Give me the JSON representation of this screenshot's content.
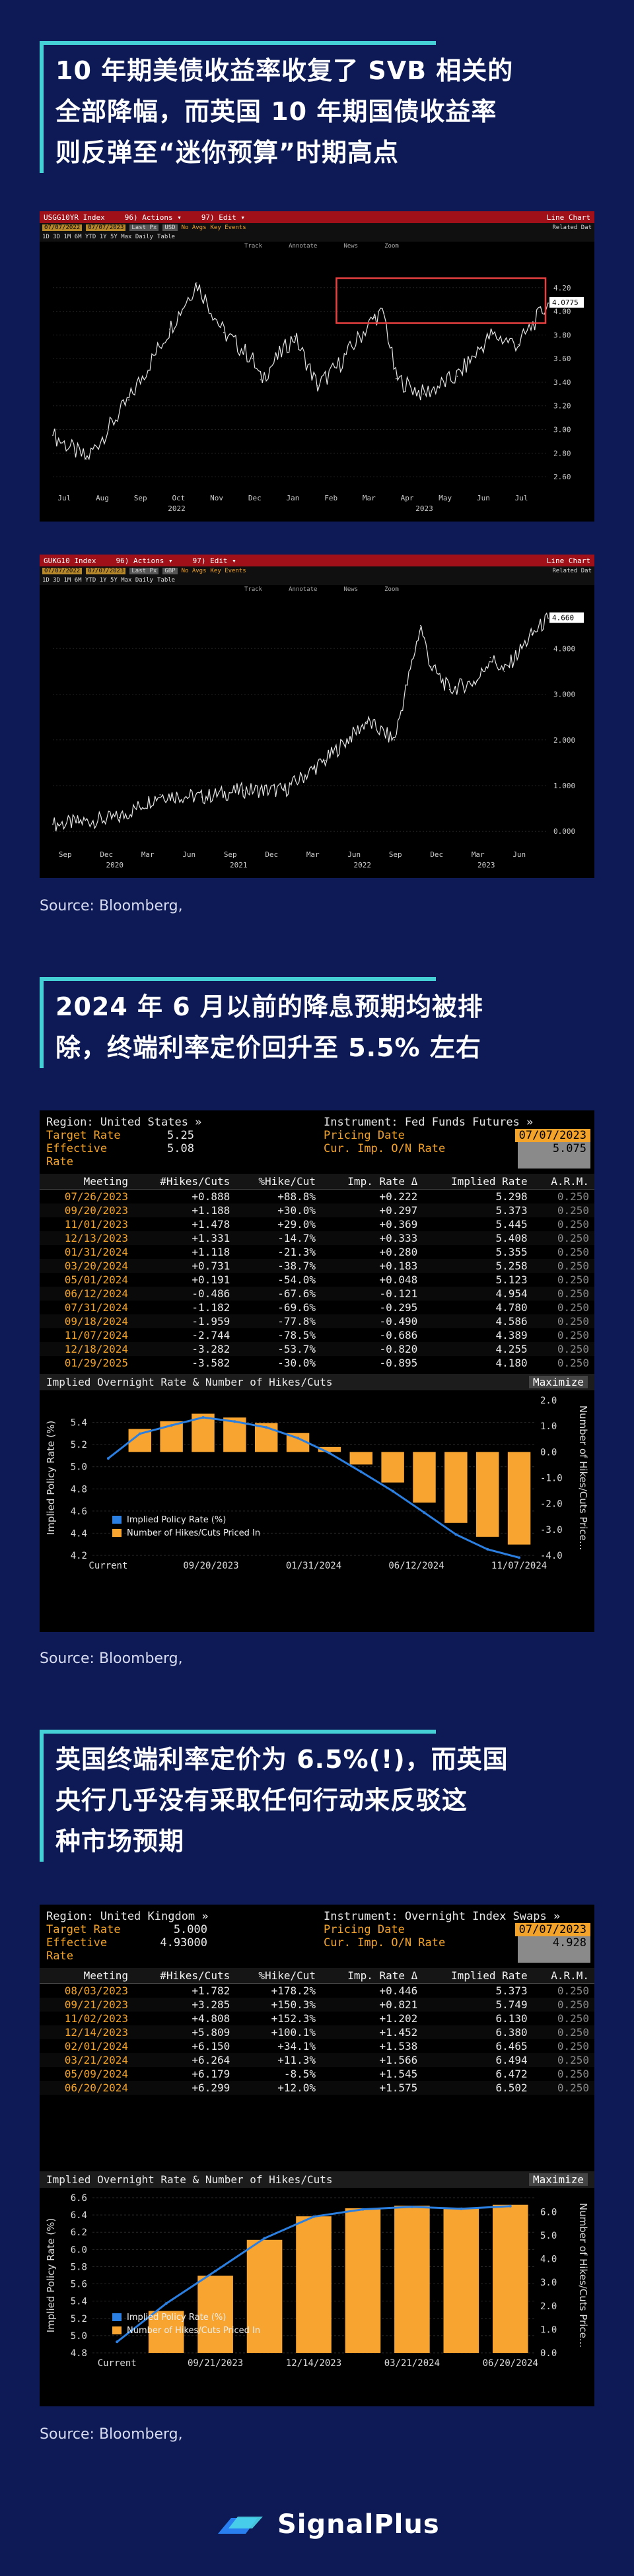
{
  "sections": [
    {
      "title_lines": [
        "10 年期美债收益率收复了 SVB 相关的",
        "全部降幅，而英国 10 年期国债收益率",
        "则反弹至“迷你预算”时期高点"
      ],
      "source": "Source: Bloomberg,"
    },
    {
      "title_lines": [
        "2024 年 6 月以前的降息预期均被排",
        "除，终端利率定价回升至 5.5% 左右"
      ],
      "source": "Source: Bloomberg,"
    },
    {
      "title_lines": [
        "英国终端利率定价为 6.5%(!)，而英国",
        "央行几乎没有采取任何行动来反驳这",
        "种市场预期"
      ],
      "source": "Source: Bloomberg,"
    }
  ],
  "terminal_ui": {
    "top_left_us": "USGG10YR Index",
    "top_left_uk": "GUKG10 Index",
    "actions": "96) Actions ▾",
    "edit": "97) Edit ▾",
    "line_chart": "Line Chart",
    "date_from": "07/07/2022",
    "date_to": "07/07/2023",
    "last_px": "Last Px",
    "usd": "USD",
    "gbp": "GBP",
    "new_avg": "No Avgs",
    "key_events": "Key Events",
    "related": "Related Dat",
    "periods": "1D 3D 1M 6M YTD 1Y 5Y Max Daily",
    "table_btn": "Table",
    "sub_tools": [
      "Track",
      "Annotate",
      "News",
      "Zoom"
    ]
  },
  "fed": {
    "region_label": "Region: United States »",
    "instrument_label": "Instrument: Fed Funds Futures »",
    "target_label": "Target Rate",
    "target_value": "5.25",
    "effective_label": "Effective Rate",
    "effective_value": "5.08",
    "pricing_label": "Pricing Date",
    "pricing_value": "07/07/2023",
    "onrate_label": "Cur. Imp. O/N Rate",
    "onrate_value": "5.075",
    "columns": [
      "Meeting",
      "#Hikes/Cuts",
      "%Hike/Cut",
      "Imp. Rate Δ",
      "Implied Rate",
      "A.R.M."
    ],
    "rows": [
      [
        "07/26/2023",
        "+0.888",
        "+88.8%",
        "+0.222",
        "5.298",
        "0.250"
      ],
      [
        "09/20/2023",
        "+1.188",
        "+30.0%",
        "+0.297",
        "5.373",
        "0.250"
      ],
      [
        "11/01/2023",
        "+1.478",
        "+29.0%",
        "+0.369",
        "5.445",
        "0.250"
      ],
      [
        "12/13/2023",
        "+1.331",
        "-14.7%",
        "+0.333",
        "5.408",
        "0.250"
      ],
      [
        "01/31/2024",
        "+1.118",
        "-21.3%",
        "+0.280",
        "5.355",
        "0.250"
      ],
      [
        "03/20/2024",
        "+0.731",
        "-38.7%",
        "+0.183",
        "5.258",
        "0.250"
      ],
      [
        "05/01/2024",
        "+0.191",
        "-54.0%",
        "+0.048",
        "5.123",
        "0.250"
      ],
      [
        "06/12/2024",
        "-0.486",
        "-67.6%",
        "-0.121",
        "4.954",
        "0.250"
      ],
      [
        "07/31/2024",
        "-1.182",
        "-69.6%",
        "-0.295",
        "4.780",
        "0.250"
      ],
      [
        "09/18/2024",
        "-1.959",
        "-77.8%",
        "-0.490",
        "4.586",
        "0.250"
      ],
      [
        "11/07/2024",
        "-2.744",
        "-78.5%",
        "-0.686",
        "4.389",
        "0.250"
      ],
      [
        "12/18/2024",
        "-3.282",
        "-53.7%",
        "-0.820",
        "4.255",
        "0.250"
      ],
      [
        "01/29/2025",
        "-3.582",
        "-30.0%",
        "-0.895",
        "4.180",
        "0.250"
      ]
    ],
    "chart_title": "Implied Overnight Rate & Number of Hikes/Cuts",
    "maximize": "Maximize",
    "legend": [
      "Implied Policy Rate (%)",
      "Number of Hikes/Cuts Priced In"
    ]
  },
  "boe": {
    "region_label": "Region: United Kingdom »",
    "instrument_label": "Instrument: Overnight Index Swaps »",
    "target_label": "Target Rate",
    "target_value": "5.000",
    "effective_label": "Effective Rate",
    "effective_value": "4.93000",
    "pricing_label": "Pricing Date",
    "pricing_value": "07/07/2023",
    "onrate_label": "Cur. Imp. O/N Rate",
    "onrate_value": "4.928",
    "columns": [
      "Meeting",
      "#Hikes/Cuts",
      "%Hike/Cut",
      "Imp. Rate Δ",
      "Implied Rate",
      "A.R.M."
    ],
    "rows": [
      [
        "08/03/2023",
        "+1.782",
        "+178.2%",
        "+0.446",
        "5.373",
        "0.250"
      ],
      [
        "09/21/2023",
        "+3.285",
        "+150.3%",
        "+0.821",
        "5.749",
        "0.250"
      ],
      [
        "11/02/2023",
        "+4.808",
        "+152.3%",
        "+1.202",
        "6.130",
        "0.250"
      ],
      [
        "12/14/2023",
        "+5.809",
        "+100.1%",
        "+1.452",
        "6.380",
        "0.250"
      ],
      [
        "02/01/2024",
        "+6.150",
        "+34.1%",
        "+1.538",
        "6.465",
        "0.250"
      ],
      [
        "03/21/2024",
        "+6.264",
        "+11.3%",
        "+1.566",
        "6.494",
        "0.250"
      ],
      [
        "05/09/2024",
        "+6.179",
        "-8.5%",
        "+1.545",
        "6.472",
        "0.250"
      ],
      [
        "06/20/2024",
        "+6.299",
        "+12.0%",
        "+1.575",
        "6.502",
        "0.250"
      ]
    ],
    "chart_title": "Implied Overnight Rate & Number of Hikes/Cuts",
    "maximize": "Maximize",
    "legend": [
      "Implied Policy Rate (%)",
      "Number of Hikes/Cuts Priced In"
    ]
  },
  "logo_text": "SignalPlus",
  "colors": {
    "background": "#0d1a55",
    "accent": "#45d0d6",
    "bbg_orange": "#f3a32a",
    "bar": "#f7a431",
    "line": "#2b7fe0",
    "bbg_red": "#a01018"
  },
  "chart_data": [
    {
      "type": "line",
      "x": [
        "2022-07-07",
        "2022-08-01",
        "2022-09-01",
        "2022-10-01",
        "2022-10-21",
        "2022-11-10",
        "2022-12-01",
        "2022-12-07",
        "2023-01-01",
        "2023-01-18",
        "2023-02-01",
        "2023-03-01",
        "2023-03-08",
        "2023-03-17",
        "2023-04-06",
        "2023-05-01",
        "2023-05-26",
        "2023-06-15",
        "2023-07-07"
      ],
      "values": [
        2.95,
        2.75,
        3.25,
        3.85,
        4.24,
        3.82,
        3.6,
        3.42,
        3.79,
        3.37,
        3.52,
        3.95,
        3.98,
        3.43,
        3.3,
        3.45,
        3.8,
        3.72,
        4.07
      ],
      "last_value_label": "4.0775",
      "ytick_labels": [
        "2.60",
        "2.80",
        "3.00",
        "3.20",
        "3.40",
        "3.60",
        "3.80",
        "4.00",
        "4.20"
      ],
      "ylim": [
        2.5,
        4.4
      ],
      "xtick_labels": [
        "Jul",
        "Aug",
        "Sep",
        "Oct",
        "Nov",
        "Dec",
        "Jan",
        "Feb",
        "Mar",
        "Apr",
        "May",
        "Jun",
        "Jul"
      ],
      "year_labels": [
        "2022",
        "2023"
      ],
      "highlight": "box around recent highs"
    },
    {
      "type": "line",
      "x": [
        "2020-07-07",
        "2020-09-01",
        "2020-12-01",
        "2021-03-01",
        "2021-06-01",
        "2021-09-01",
        "2021-12-01",
        "2022-03-01",
        "2022-06-01",
        "2022-08-01",
        "2022-09-28",
        "2022-10-21",
        "2022-12-01",
        "2023-02-01",
        "2023-03-01",
        "2023-04-01",
        "2023-06-01",
        "2023-07-07"
      ],
      "values": [
        0.15,
        0.2,
        0.3,
        0.8,
        0.75,
        0.9,
        0.9,
        1.55,
        2.4,
        2.0,
        4.5,
        3.6,
        3.1,
        3.3,
        3.8,
        3.5,
        4.3,
        4.66
      ],
      "last_value_label": "4.660",
      "ytick_labels": [
        "0.000",
        "1.000",
        "2.000",
        "3.000",
        "4.000"
      ],
      "ylim": [
        -0.3,
        4.9
      ],
      "xtick_labels": [
        "Sep",
        "Dec",
        "Mar",
        "Jun",
        "Sep",
        "Dec",
        "Mar",
        "Jun",
        "Sep",
        "Dec",
        "Mar",
        "Jun"
      ],
      "year_labels": [
        "2020",
        "2021",
        "2022",
        "2023"
      ]
    },
    {
      "type": "bar",
      "categories": [
        "07/26/2023",
        "09/20/2023",
        "11/01/2023",
        "12/13/2023",
        "01/31/2024",
        "03/20/2024",
        "05/01/2024",
        "06/12/2024",
        "07/31/2024",
        "09/18/2024",
        "11/07/2024",
        "12/18/2024",
        "01/29/2025"
      ],
      "series": [
        {
          "name": "Number of Hikes/Cuts Priced In",
          "values": [
            0.888,
            1.188,
            1.478,
            1.331,
            1.118,
            0.731,
            0.191,
            -0.486,
            -1.182,
            -1.959,
            -2.744,
            -3.282,
            -3.582
          ]
        },
        {
          "name": "Implied Policy Rate (%)",
          "values": [
            5.298,
            5.373,
            5.445,
            5.408,
            5.355,
            5.258,
            5.123,
            4.954,
            4.78,
            4.586,
            4.389,
            4.255,
            4.18
          ]
        }
      ],
      "current_rate": 5.075,
      "xtick_labels": [
        "Current",
        "09/20/2023",
        "01/31/2024",
        "06/12/2024",
        "11/07/2024"
      ],
      "ylabel": "Implied Policy Rate (%)",
      "y2label": "Number of Hikes/Cuts Price...",
      "ylim": [
        4.2,
        5.6
      ],
      "y2lim": [
        -4.0,
        2.0
      ],
      "ytick_labels": [
        "4.2",
        "4.4",
        "4.6",
        "4.8",
        "5.0",
        "5.2",
        "5.4"
      ],
      "y2tick_labels": [
        "2.0",
        "1.0",
        "0.0",
        "-1.0",
        "-2.0",
        "-3.0",
        "-4.0"
      ]
    },
    {
      "type": "bar",
      "categories": [
        "08/03/2023",
        "09/21/2023",
        "11/02/2023",
        "12/14/2023",
        "02/01/2024",
        "03/21/2024",
        "05/09/2024",
        "06/20/2024"
      ],
      "series": [
        {
          "name": "Number of Hikes/Cuts Priced In",
          "values": [
            1.782,
            3.285,
            4.808,
            5.809,
            6.15,
            6.264,
            6.179,
            6.299
          ]
        },
        {
          "name": "Implied Policy Rate (%)",
          "values": [
            5.373,
            5.749,
            6.13,
            6.38,
            6.465,
            6.494,
            6.472,
            6.502
          ]
        }
      ],
      "current_rate": 4.928,
      "xtick_labels": [
        "Current",
        "09/21/2023",
        "12/14/2023",
        "03/21/2024",
        "06/20/2024"
      ],
      "ylabel": "Implied Policy Rate (%)",
      "y2label": "Number of Hikes/Cuts Price...",
      "ylim": [
        4.8,
        6.6
      ],
      "y2lim": [
        0.0,
        6.6
      ],
      "ytick_labels": [
        "4.8",
        "5.0",
        "5.2",
        "5.4",
        "5.6",
        "5.8",
        "6.0",
        "6.2",
        "6.4",
        "6.6"
      ],
      "y2tick_labels": [
        "0.0",
        "1.0",
        "2.0",
        "3.0",
        "4.0",
        "5.0",
        "6.0"
      ]
    }
  ]
}
